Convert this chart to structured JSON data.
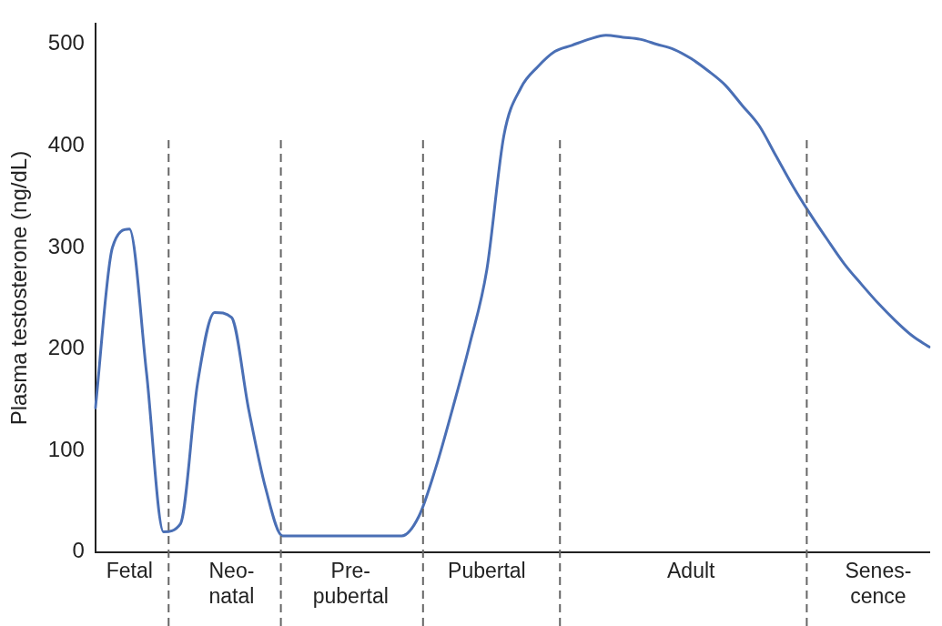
{
  "chart_data": {
    "type": "line",
    "ylabel": "Plasma testosterone (ng/dL)",
    "categories": [
      null,
      null,
      "Fetal",
      null,
      null,
      null,
      null,
      null,
      "Neo-\nnatal",
      null,
      null,
      null,
      null,
      null,
      null,
      "Pre-\npubertal",
      null,
      null,
      null,
      null,
      null,
      null,
      null,
      "Pubertal",
      null,
      null,
      null,
      null,
      null,
      null,
      null,
      null,
      null,
      null,
      null,
      "Adult",
      null,
      null,
      null,
      null,
      null,
      null,
      null,
      null,
      null,
      null,
      "Senes-\ncence",
      null,
      null,
      null
    ],
    "ylim": [
      0,
      520
    ],
    "yticks": [
      0,
      100,
      200,
      300,
      400,
      500
    ],
    "grid": false,
    "legend": false,
    "marker": "none",
    "line_style": "solid",
    "series": [
      {
        "color": "#4a6fb5",
        "values": [
          142,
          300,
          318,
          177,
          20,
          28,
          166,
          236,
          231,
          141,
          63,
          16,
          16,
          16,
          16,
          16,
          16,
          16,
          16,
          35,
          83,
          142,
          205,
          278,
          410,
          457,
          478,
          493,
          499,
          505,
          509,
          507,
          505,
          500,
          495,
          486,
          474,
          460,
          440,
          420,
          390,
          360,
          333,
          308,
          284,
          264,
          245,
          228,
          213,
          202
        ]
      }
    ]
  }
}
